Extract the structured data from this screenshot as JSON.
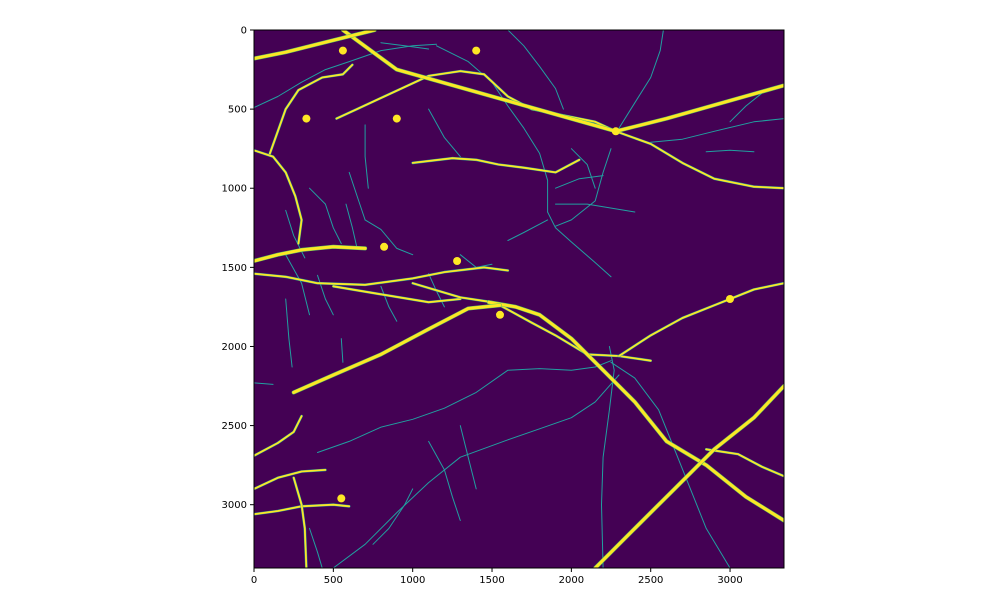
{
  "chart_data": {
    "type": "heatmap",
    "title": "",
    "xlabel": "",
    "ylabel": "",
    "image_size": {
      "width": 3340,
      "height": 3400
    },
    "xlim": [
      0,
      3340
    ],
    "ylim": [
      3400,
      0
    ],
    "y_axis_inverted": true,
    "grid": false,
    "legend": "none",
    "colormap": "viridis",
    "values": [
      0,
      1
    ],
    "background_color": "#440154",
    "thin_line_color": "#21a0a0",
    "mid_line_color": "#5ec962",
    "bold_line_color": "#fde725",
    "x_ticks": [
      0,
      500,
      1000,
      1500,
      2000,
      2500,
      3000
    ],
    "y_ticks": [
      0,
      500,
      1000,
      1500,
      2000,
      2500,
      3000
    ],
    "x_tick_labels": [
      "0",
      "500",
      "1000",
      "1500",
      "2000",
      "2500",
      "3000"
    ],
    "y_tick_labels": [
      "0",
      "500",
      "1000",
      "1500",
      "2000",
      "2500",
      "3000"
    ],
    "features": {
      "main_roads": [
        [
          [
            560,
            0
          ],
          [
            900,
            250
          ],
          [
            2280,
            640
          ],
          [
            2600,
            560
          ],
          [
            3340,
            350
          ]
        ],
        [
          [
            1480,
            1720
          ],
          [
            1650,
            1750
          ],
          [
            1800,
            1800
          ],
          [
            2000,
            1950
          ],
          [
            2200,
            2150
          ],
          [
            2400,
            2350
          ],
          [
            2600,
            2600
          ],
          [
            2850,
            2750
          ],
          [
            3100,
            2950
          ],
          [
            3340,
            3100
          ]
        ],
        [
          [
            250,
            2290
          ],
          [
            500,
            2180
          ],
          [
            800,
            2050
          ],
          [
            1100,
            1890
          ],
          [
            1350,
            1760
          ],
          [
            1550,
            1740
          ]
        ],
        [
          [
            2150,
            3400
          ],
          [
            2400,
            3150
          ],
          [
            2650,
            2900
          ],
          [
            2900,
            2650
          ],
          [
            3150,
            2450
          ],
          [
            3340,
            2250
          ]
        ],
        [
          [
            0,
            180
          ],
          [
            200,
            140
          ],
          [
            400,
            90
          ],
          [
            600,
            40
          ],
          [
            760,
            0
          ]
        ],
        [
          [
            0,
            1460
          ],
          [
            150,
            1420
          ],
          [
            300,
            1390
          ],
          [
            500,
            1370
          ],
          [
            700,
            1380
          ]
        ]
      ],
      "branch_roads": [
        [
          [
            0,
            1540
          ],
          [
            200,
            1560
          ],
          [
            400,
            1600
          ],
          [
            700,
            1610
          ],
          [
            1000,
            1570
          ],
          [
            1200,
            1530
          ],
          [
            1450,
            1500
          ],
          [
            1600,
            1520
          ]
        ],
        [
          [
            0,
            760
          ],
          [
            120,
            800
          ],
          [
            200,
            900
          ],
          [
            260,
            1050
          ],
          [
            300,
            1200
          ],
          [
            280,
            1350
          ]
        ],
        [
          [
            100,
            780
          ],
          [
            150,
            640
          ],
          [
            200,
            500
          ],
          [
            280,
            380
          ],
          [
            430,
            300
          ],
          [
            560,
            280
          ],
          [
            620,
            220
          ]
        ],
        [
          [
            520,
            560
          ],
          [
            650,
            500
          ],
          [
            800,
            430
          ],
          [
            950,
            360
          ],
          [
            1100,
            290
          ],
          [
            1300,
            260
          ],
          [
            1450,
            280
          ],
          [
            1600,
            420
          ],
          [
            1750,
            500
          ],
          [
            1950,
            540
          ],
          [
            2150,
            580
          ],
          [
            2280,
            640
          ]
        ],
        [
          [
            1000,
            840
          ],
          [
            1250,
            810
          ],
          [
            1400,
            820
          ],
          [
            1540,
            850
          ],
          [
            1700,
            870
          ],
          [
            1900,
            900
          ],
          [
            2050,
            820
          ]
        ],
        [
          [
            1550,
            1740
          ],
          [
            1750,
            1850
          ],
          [
            1900,
            1930
          ],
          [
            2100,
            2050
          ],
          [
            2300,
            2060
          ],
          [
            2500,
            2090
          ]
        ],
        [
          [
            2300,
            2060
          ],
          [
            2500,
            1930
          ],
          [
            2700,
            1820
          ],
          [
            2900,
            1740
          ],
          [
            3150,
            1640
          ],
          [
            3340,
            1600
          ]
        ],
        [
          [
            0,
            2690
          ],
          [
            150,
            2610
          ],
          [
            250,
            2540
          ],
          [
            300,
            2440
          ]
        ],
        [
          [
            0,
            2900
          ],
          [
            150,
            2830
          ],
          [
            300,
            2790
          ],
          [
            450,
            2780
          ]
        ],
        [
          [
            0,
            3060
          ],
          [
            150,
            3040
          ],
          [
            300,
            3010
          ],
          [
            500,
            3000
          ],
          [
            600,
            3010
          ]
        ],
        [
          [
            250,
            2830
          ],
          [
            300,
            3000
          ],
          [
            320,
            3150
          ],
          [
            330,
            3400
          ]
        ],
        [
          [
            2850,
            2650
          ],
          [
            3050,
            2680
          ],
          [
            3200,
            2760
          ],
          [
            3340,
            2820
          ]
        ],
        [
          [
            2280,
            640
          ],
          [
            2500,
            720
          ],
          [
            2700,
            840
          ],
          [
            2900,
            940
          ],
          [
            3150,
            990
          ],
          [
            3340,
            1000
          ]
        ],
        [
          [
            500,
            1620
          ],
          [
            800,
            1670
          ],
          [
            1100,
            1720
          ],
          [
            1300,
            1700
          ]
        ],
        [
          [
            1000,
            1600
          ],
          [
            1300,
            1690
          ],
          [
            1500,
            1720
          ]
        ]
      ],
      "thin_paths": [
        [
          [
            2200,
            3400
          ],
          [
            2190,
            3000
          ],
          [
            2200,
            2700
          ],
          [
            2240,
            2400
          ],
          [
            2270,
            2150
          ],
          [
            2240,
            2000
          ]
        ],
        [
          [
            500,
            3400
          ],
          [
            700,
            3250
          ],
          [
            900,
            3050
          ],
          [
            1100,
            2860
          ],
          [
            1300,
            2700
          ],
          [
            1600,
            2590
          ],
          [
            1800,
            2520
          ],
          [
            2000,
            2450
          ],
          [
            2150,
            2350
          ],
          [
            2300,
            2180
          ]
        ],
        [
          [
            400,
            2670
          ],
          [
            600,
            2600
          ],
          [
            800,
            2510
          ],
          [
            1000,
            2460
          ],
          [
            1200,
            2390
          ],
          [
            1400,
            2290
          ],
          [
            1600,
            2150
          ],
          [
            1800,
            2140
          ],
          [
            2000,
            2150
          ],
          [
            2150,
            2130
          ],
          [
            2250,
            2090
          ]
        ],
        [
          [
            2250,
            2100
          ],
          [
            2400,
            2200
          ],
          [
            2550,
            2400
          ],
          [
            2650,
            2650
          ],
          [
            2750,
            2900
          ],
          [
            2850,
            3150
          ],
          [
            3000,
            3400
          ]
        ],
        [
          [
            0,
            490
          ],
          [
            150,
            420
          ],
          [
            300,
            330
          ],
          [
            450,
            250
          ],
          [
            600,
            200
          ],
          [
            800,
            130
          ],
          [
            1000,
            100
          ],
          [
            1150,
            90
          ]
        ],
        [
          [
            1150,
            100
          ],
          [
            1350,
            200
          ],
          [
            1500,
            330
          ],
          [
            1600,
            480
          ],
          [
            1700,
            620
          ],
          [
            1800,
            780
          ],
          [
            1850,
            950
          ],
          [
            1850,
            1150
          ]
        ],
        [
          [
            2300,
            620
          ],
          [
            2400,
            460
          ],
          [
            2500,
            300
          ],
          [
            2560,
            130
          ],
          [
            2580,
            0
          ]
        ],
        [
          [
            2500,
            710
          ],
          [
            2700,
            690
          ],
          [
            2900,
            640
          ],
          [
            3150,
            580
          ],
          [
            3340,
            560
          ]
        ],
        [
          [
            3000,
            580
          ],
          [
            3100,
            480
          ],
          [
            3200,
            400
          ]
        ],
        [
          [
            2850,
            770
          ],
          [
            3000,
            760
          ],
          [
            3150,
            770
          ]
        ],
        [
          [
            1850,
            1150
          ],
          [
            1900,
            1250
          ],
          [
            2000,
            1340
          ],
          [
            2150,
            1470
          ],
          [
            2250,
            1560
          ]
        ],
        [
          [
            200,
            1700
          ],
          [
            220,
            1950
          ],
          [
            240,
            2130
          ]
        ],
        [
          [
            550,
            1950
          ],
          [
            560,
            2100
          ]
        ],
        [
          [
            0,
            2230
          ],
          [
            120,
            2240
          ]
        ],
        [
          [
            350,
            3150
          ],
          [
            400,
            3300
          ],
          [
            430,
            3400
          ]
        ],
        [
          [
            750,
            3250
          ],
          [
            850,
            3150
          ],
          [
            950,
            3000
          ],
          [
            1000,
            2900
          ]
        ],
        [
          [
            1100,
            2600
          ],
          [
            1200,
            2780
          ],
          [
            1250,
            2950
          ],
          [
            1300,
            3100
          ]
        ],
        [
          [
            1300,
            2500
          ],
          [
            1350,
            2700
          ],
          [
            1400,
            2900
          ]
        ],
        [
          [
            200,
            1140
          ],
          [
            250,
            1300
          ],
          [
            320,
            1440
          ]
        ],
        [
          [
            350,
            1000
          ],
          [
            450,
            1100
          ],
          [
            500,
            1250
          ],
          [
            550,
            1350
          ]
        ],
        [
          [
            580,
            1100
          ],
          [
            620,
            1250
          ],
          [
            650,
            1380
          ]
        ],
        [
          [
            700,
            1200
          ],
          [
            800,
            1260
          ],
          [
            900,
            1380
          ],
          [
            1000,
            1420
          ]
        ],
        [
          [
            200,
            1420
          ],
          [
            300,
            1600
          ],
          [
            350,
            1800
          ]
        ],
        [
          [
            400,
            1550
          ],
          [
            450,
            1700
          ],
          [
            500,
            1800
          ]
        ],
        [
          [
            800,
            1620
          ],
          [
            850,
            1750
          ],
          [
            900,
            1840
          ]
        ],
        [
          [
            1100,
            1540
          ],
          [
            1150,
            1650
          ],
          [
            1200,
            1750
          ]
        ],
        [
          [
            1300,
            1420
          ],
          [
            1400,
            1500
          ],
          [
            1500,
            1480
          ]
        ],
        [
          [
            1600,
            1330
          ],
          [
            1700,
            1280
          ],
          [
            1850,
            1200
          ]
        ],
        [
          [
            1900,
            1240
          ],
          [
            2000,
            1200
          ],
          [
            2150,
            1080
          ],
          [
            2200,
            900
          ],
          [
            2250,
            750
          ]
        ],
        [
          [
            1900,
            1000
          ],
          [
            2050,
            940
          ],
          [
            2200,
            920
          ]
        ],
        [
          [
            1900,
            1100
          ],
          [
            2100,
            1100
          ],
          [
            2400,
            1150
          ]
        ],
        [
          [
            800,
            80
          ],
          [
            950,
            100
          ],
          [
            1100,
            120
          ]
        ],
        [
          [
            1600,
            0
          ],
          [
            1700,
            100
          ],
          [
            1800,
            230
          ],
          [
            1900,
            370
          ],
          [
            1950,
            500
          ]
        ],
        [
          [
            2000,
            750
          ],
          [
            2100,
            850
          ],
          [
            2150,
            1000
          ]
        ],
        [
          [
            1100,
            500
          ],
          [
            1200,
            680
          ],
          [
            1300,
            800
          ]
        ],
        [
          [
            700,
            600
          ],
          [
            700,
            800
          ],
          [
            720,
            1000
          ]
        ],
        [
          [
            600,
            900
          ],
          [
            650,
            1050
          ],
          [
            700,
            1200
          ]
        ]
      ],
      "blobs": [
        [
          2280,
          640
        ],
        [
          560,
          130
        ],
        [
          1400,
          130
        ],
        [
          1280,
          1460
        ],
        [
          820,
          1370
        ],
        [
          330,
          560
        ],
        [
          3000,
          1700
        ],
        [
          550,
          2960
        ],
        [
          900,
          560
        ],
        [
          1550,
          1800
        ]
      ]
    }
  }
}
